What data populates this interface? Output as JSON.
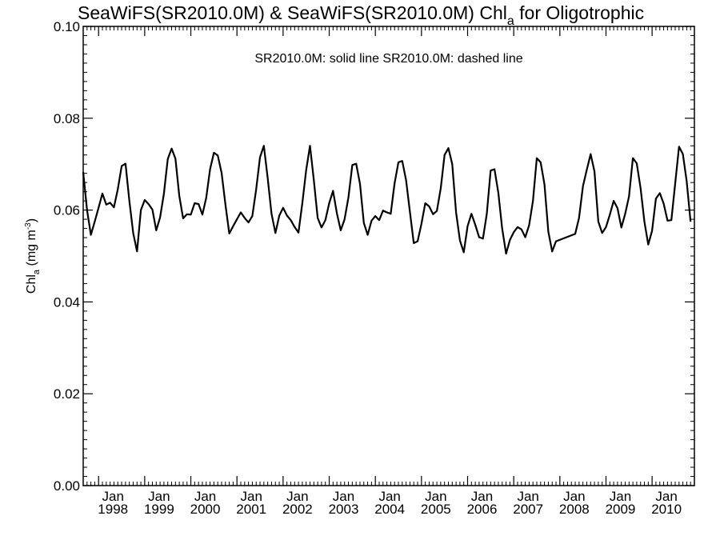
{
  "chart_data": {
    "type": "line",
    "title_main": "SeaWiFS(SR2010.0M) & SeaWiFS(SR2010.0M)  Chl",
    "title_sub": "a",
    "title_tail": " for Oligotrophic",
    "legend": "SR2010.0M: solid line   SR2010.0M: dashed line",
    "ylabel_main": "Chl",
    "ylabel_sub": "a",
    "ylabel_units": " (mg m",
    "ylabel_exp": "-3",
    "ylabel_close": ")",
    "ylim": [
      0.0,
      0.1
    ],
    "yticks": [
      "0.00",
      "0.02",
      "0.04",
      "0.06",
      "0.08",
      "0.10"
    ],
    "xlim": [
      "1997-09",
      "2010-12"
    ],
    "xticks": [
      {
        "month": "Jan",
        "year": "1998"
      },
      {
        "month": "Jan",
        "year": "1999"
      },
      {
        "month": "Jan",
        "year": "2000"
      },
      {
        "month": "Jan",
        "year": "2001"
      },
      {
        "month": "Jan",
        "year": "2002"
      },
      {
        "month": "Jan",
        "year": "2003"
      },
      {
        "month": "Jan",
        "year": "2004"
      },
      {
        "month": "Jan",
        "year": "2005"
      },
      {
        "month": "Jan",
        "year": "2006"
      },
      {
        "month": "Jan",
        "year": "2007"
      },
      {
        "month": "Jan",
        "year": "2008"
      },
      {
        "month": "Jan",
        "year": "2009"
      },
      {
        "month": "Jan",
        "year": "2010"
      }
    ],
    "series": [
      {
        "name": "SR2010.0M",
        "style": "solid",
        "points": [
          [
            "1997-09",
            0.0683
          ],
          [
            "1997-10",
            0.06
          ],
          [
            "1997-11",
            0.0546
          ],
          [
            "1997-12",
            0.0575
          ],
          [
            "1998-01",
            0.0605
          ],
          [
            "1998-02",
            0.0636
          ],
          [
            "1998-03",
            0.0612
          ],
          [
            "1998-04",
            0.0616
          ],
          [
            "1998-05",
            0.0606
          ],
          [
            "1998-06",
            0.0645
          ],
          [
            "1998-07",
            0.0696
          ],
          [
            "1998-08",
            0.0701
          ],
          [
            "1998-09",
            0.062
          ],
          [
            "1998-10",
            0.055
          ],
          [
            "1998-11",
            0.051
          ],
          [
            "1998-12",
            0.06
          ],
          [
            "1999-01",
            0.0622
          ],
          [
            "1999-02",
            0.0613
          ],
          [
            "1999-03",
            0.0601
          ],
          [
            "1999-04",
            0.0556
          ],
          [
            "1999-05",
            0.0584
          ],
          [
            "1999-06",
            0.0636
          ],
          [
            "1999-07",
            0.0711
          ],
          [
            "1999-08",
            0.0734
          ],
          [
            "1999-09",
            0.0712
          ],
          [
            "1999-10",
            0.0631
          ],
          [
            "1999-11",
            0.0582
          ],
          [
            "1999-12",
            0.0591
          ],
          [
            "2000-01",
            0.059
          ],
          [
            "2000-02",
            0.0615
          ],
          [
            "2000-03",
            0.0613
          ],
          [
            "2000-04",
            0.059
          ],
          [
            "2000-05",
            0.0627
          ],
          [
            "2000-06",
            0.0689
          ],
          [
            "2000-07",
            0.0725
          ],
          [
            "2000-08",
            0.0719
          ],
          [
            "2000-09",
            0.0681
          ],
          [
            "2000-10",
            0.0612
          ],
          [
            "2000-11",
            0.0549
          ],
          [
            "2000-12",
            0.0565
          ],
          [
            "2001-01",
            0.058
          ],
          [
            "2001-02",
            0.0595
          ],
          [
            "2001-03",
            0.0583
          ],
          [
            "2001-04",
            0.0573
          ],
          [
            "2001-05",
            0.0587
          ],
          [
            "2001-06",
            0.0645
          ],
          [
            "2001-07",
            0.0715
          ],
          [
            "2001-08",
            0.074
          ],
          [
            "2001-09",
            0.067
          ],
          [
            "2001-10",
            0.0592
          ],
          [
            "2001-11",
            0.055
          ],
          [
            "2001-12",
            0.0588
          ],
          [
            "2002-01",
            0.0605
          ],
          [
            "2002-02",
            0.0588
          ],
          [
            "2002-03",
            0.0578
          ],
          [
            "2002-04",
            0.0563
          ],
          [
            "2002-05",
            0.0551
          ],
          [
            "2002-06",
            0.0615
          ],
          [
            "2002-07",
            0.0687
          ],
          [
            "2002-08",
            0.074
          ],
          [
            "2002-09",
            0.0665
          ],
          [
            "2002-10",
            0.0583
          ],
          [
            "2002-11",
            0.0562
          ],
          [
            "2002-12",
            0.0578
          ],
          [
            "2003-01",
            0.0615
          ],
          [
            "2003-02",
            0.0642
          ],
          [
            "2003-03",
            0.0593
          ],
          [
            "2003-04",
            0.0556
          ],
          [
            "2003-05",
            0.058
          ],
          [
            "2003-06",
            0.0627
          ],
          [
            "2003-07",
            0.0698
          ],
          [
            "2003-08",
            0.0701
          ],
          [
            "2003-09",
            0.0657
          ],
          [
            "2003-10",
            0.0572
          ],
          [
            "2003-11",
            0.0546
          ],
          [
            "2003-12",
            0.0577
          ],
          [
            "2004-01",
            0.0587
          ],
          [
            "2004-02",
            0.0578
          ],
          [
            "2004-03",
            0.0599
          ],
          [
            "2004-04",
            0.0595
          ],
          [
            "2004-05",
            0.0592
          ],
          [
            "2004-06",
            0.0658
          ],
          [
            "2004-07",
            0.0704
          ],
          [
            "2004-08",
            0.0707
          ],
          [
            "2004-09",
            0.0665
          ],
          [
            "2004-10",
            0.0596
          ],
          [
            "2004-11",
            0.0528
          ],
          [
            "2004-12",
            0.0532
          ],
          [
            "2005-01",
            0.057
          ],
          [
            "2005-02",
            0.0615
          ],
          [
            "2005-03",
            0.0608
          ],
          [
            "2005-04",
            0.0591
          ],
          [
            "2005-05",
            0.0598
          ],
          [
            "2005-06",
            0.0647
          ],
          [
            "2005-07",
            0.072
          ],
          [
            "2005-08",
            0.0735
          ],
          [
            "2005-09",
            0.07
          ],
          [
            "2005-10",
            0.0595
          ],
          [
            "2005-11",
            0.0534
          ],
          [
            "2005-12",
            0.0508
          ],
          [
            "2006-01",
            0.0565
          ],
          [
            "2006-02",
            0.0592
          ],
          [
            "2006-03",
            0.0568
          ],
          [
            "2006-04",
            0.0541
          ],
          [
            "2006-05",
            0.0538
          ],
          [
            "2006-06",
            0.0592
          ],
          [
            "2006-07",
            0.0686
          ],
          [
            "2006-08",
            0.0689
          ],
          [
            "2006-09",
            0.0638
          ],
          [
            "2006-10",
            0.056
          ],
          [
            "2006-11",
            0.0505
          ],
          [
            "2006-12",
            0.0535
          ],
          [
            "2007-01",
            0.0552
          ],
          [
            "2007-02",
            0.0563
          ],
          [
            "2007-03",
            0.0558
          ],
          [
            "2007-04",
            0.0541
          ],
          [
            "2007-05",
            0.0567
          ],
          [
            "2007-06",
            0.062
          ],
          [
            "2007-07",
            0.0713
          ],
          [
            "2007-08",
            0.0704
          ],
          [
            "2007-09",
            0.0656
          ],
          [
            "2007-10",
            0.0553
          ],
          [
            "2007-11",
            0.051
          ],
          [
            "2007-12",
            0.0532
          ],
          [
            "2008-05",
            0.0548
          ],
          [
            "2008-06",
            0.0583
          ],
          [
            "2008-07",
            0.0652
          ],
          [
            "2008-08",
            0.0688
          ],
          [
            "2008-09",
            0.0722
          ],
          [
            "2008-10",
            0.0684
          ],
          [
            "2008-11",
            0.0575
          ],
          [
            "2008-12",
            0.055
          ],
          [
            "2009-01",
            0.0563
          ],
          [
            "2009-02",
            0.059
          ],
          [
            "2009-03",
            0.062
          ],
          [
            "2009-04",
            0.0604
          ],
          [
            "2009-05",
            0.0562
          ],
          [
            "2009-06",
            0.0592
          ],
          [
            "2009-07",
            0.063
          ],
          [
            "2009-08",
            0.0713
          ],
          [
            "2009-09",
            0.0702
          ],
          [
            "2009-10",
            0.0648
          ],
          [
            "2009-11",
            0.0575
          ],
          [
            "2009-12",
            0.0525
          ],
          [
            "2010-01",
            0.0555
          ],
          [
            "2010-02",
            0.0625
          ],
          [
            "2010-03",
            0.0637
          ],
          [
            "2010-04",
            0.0614
          ],
          [
            "2010-05",
            0.0577
          ],
          [
            "2010-06",
            0.0578
          ],
          [
            "2010-07",
            0.0658
          ],
          [
            "2010-08",
            0.0738
          ],
          [
            "2010-09",
            0.0722
          ],
          [
            "2010-10",
            0.0662
          ],
          [
            "2010-11",
            0.0575
          ]
        ]
      }
    ]
  }
}
